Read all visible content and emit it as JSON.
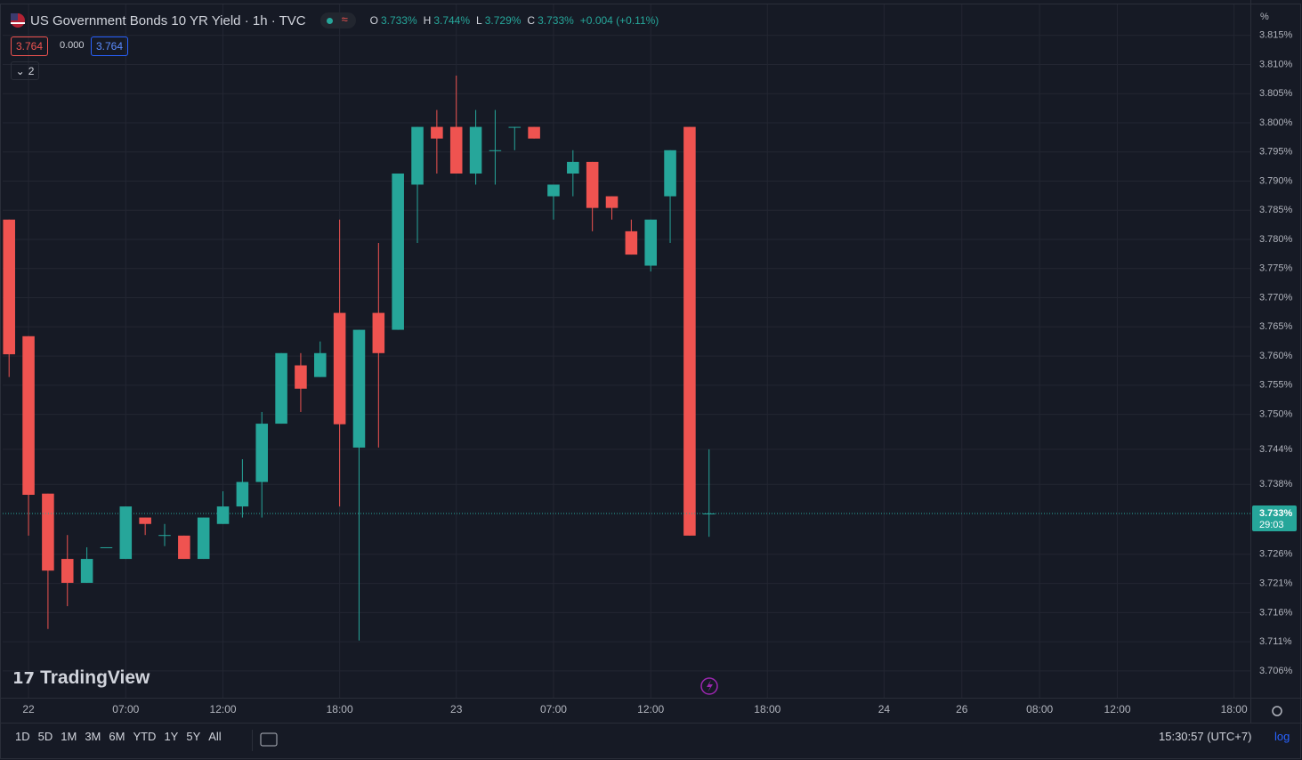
{
  "chart_data": {
    "type": "candlestick",
    "title": "US Government Bonds 10 YR Yield · 1h · TVC",
    "up_color": "#26a69a",
    "down_color": "#ef5350",
    "x": [
      0,
      1,
      2,
      3,
      4,
      5,
      6,
      7,
      8,
      9,
      10,
      11,
      12,
      13,
      14,
      15,
      16,
      17,
      18,
      19,
      20,
      21,
      22,
      23,
      24,
      25,
      26,
      27,
      28,
      29,
      30,
      31,
      32,
      33,
      34,
      35,
      36
    ],
    "open": [
      3.7834,
      3.7634,
      3.7364,
      3.7252,
      3.7211,
      3.7272,
      3.7252,
      3.7323,
      3.7293,
      3.7292,
      3.7252,
      3.7312,
      3.7342,
      3.7384,
      3.7484,
      3.7584,
      3.7564,
      3.7674,
      3.7443,
      3.7674,
      3.7645,
      3.7894,
      3.7993,
      3.7993,
      3.7913,
      3.7953,
      3.7993,
      3.7993,
      3.7874,
      3.7913,
      3.7933,
      3.7874,
      3.7814,
      3.7755,
      3.7874,
      3.7993,
      3.733
    ],
    "high": [
      3.7834,
      3.7634,
      3.7364,
      3.7293,
      3.7272,
      3.7272,
      3.7342,
      3.7323,
      3.7312,
      3.7292,
      3.7323,
      3.7368,
      3.7423,
      3.7504,
      3.7605,
      3.7605,
      3.7625,
      3.7834,
      3.7645,
      3.7794,
      3.7913,
      3.7993,
      3.8022,
      3.8081,
      3.8022,
      3.8022,
      3.7993,
      3.7993,
      3.7894,
      3.7953,
      3.7933,
      3.7874,
      3.7834,
      3.7834,
      3.7953,
      3.7993,
      3.744
    ],
    "low": [
      3.7564,
      3.7292,
      3.7132,
      3.7171,
      3.7211,
      3.7272,
      3.7252,
      3.7293,
      3.7274,
      3.7252,
      3.7252,
      3.7312,
      3.7323,
      3.7323,
      3.7484,
      3.7504,
      3.7564,
      3.7342,
      3.7112,
      3.7443,
      3.7645,
      3.7794,
      3.7913,
      3.7913,
      3.7894,
      3.7894,
      3.7953,
      3.7973,
      3.7834,
      3.7874,
      3.7814,
      3.7834,
      3.7774,
      3.7745,
      3.7794,
      3.7292,
      3.729
    ],
    "close": [
      3.7603,
      3.7362,
      3.7232,
      3.7211,
      3.7252,
      3.7272,
      3.7342,
      3.7312,
      3.7293,
      3.7252,
      3.7323,
      3.7342,
      3.7384,
      3.7484,
      3.7605,
      3.7544,
      3.7605,
      3.7483,
      3.7645,
      3.7605,
      3.7913,
      3.7993,
      3.7973,
      3.7913,
      3.7993,
      3.7953,
      3.7993,
      3.7973,
      3.7894,
      3.7933,
      3.7854,
      3.7854,
      3.7774,
      3.7834,
      3.7953,
      3.7292,
      3.733
    ],
    "xlim": [
      -0.33,
      63.84
    ],
    "xticks": [
      {
        "value": 1,
        "label": "22"
      },
      {
        "value": 6,
        "label": "07:00"
      },
      {
        "value": 11,
        "label": "12:00"
      },
      {
        "value": 17,
        "label": "18:00"
      },
      {
        "value": 23,
        "label": "23"
      },
      {
        "value": 28,
        "label": "07:00"
      },
      {
        "value": 33,
        "label": "12:00"
      },
      {
        "value": 39,
        "label": "18:00"
      },
      {
        "value": 45,
        "label": "24"
      },
      {
        "value": 49,
        "label": "26"
      },
      {
        "value": 53,
        "label": "08:00"
      },
      {
        "value": 57,
        "label": "12:00"
      },
      {
        "value": 63,
        "label": "18:00"
      }
    ],
    "ylim": [
      3.7014,
      3.8203
    ],
    "yticks": [
      {
        "value": 3.815,
        "label": "3.815%"
      },
      {
        "value": 3.81,
        "label": "3.810%"
      },
      {
        "value": 3.805,
        "label": "3.805%"
      },
      {
        "value": 3.8,
        "label": "3.800%"
      },
      {
        "value": 3.795,
        "label": "3.795%"
      },
      {
        "value": 3.79,
        "label": "3.790%"
      },
      {
        "value": 3.785,
        "label": "3.785%"
      },
      {
        "value": 3.78,
        "label": "3.780%"
      },
      {
        "value": 3.775,
        "label": "3.775%"
      },
      {
        "value": 3.77,
        "label": "3.770%"
      },
      {
        "value": 3.765,
        "label": "3.765%"
      },
      {
        "value": 3.76,
        "label": "3.760%"
      },
      {
        "value": 3.755,
        "label": "3.755%"
      },
      {
        "value": 3.75,
        "label": "3.750%"
      },
      {
        "value": 3.744,
        "label": "3.744%"
      },
      {
        "value": 3.738,
        "label": "3.738%"
      },
      {
        "value": 3.726,
        "label": "3.726%"
      },
      {
        "value": 3.721,
        "label": "3.721%"
      },
      {
        "value": 3.716,
        "label": "3.716%"
      },
      {
        "value": 3.711,
        "label": "3.711%"
      },
      {
        "value": 3.706,
        "label": "3.706%"
      }
    ],
    "y_unit": "%",
    "grid": true,
    "log_scale": true,
    "last_price": {
      "value": 3.733,
      "label": "3.733%"
    },
    "countdown": "29:03"
  },
  "legend": {
    "open_key": "O",
    "open": "3.733%",
    "high_key": "H",
    "high": "3.744%",
    "low_key": "L",
    "low": "3.729%",
    "close_key": "C",
    "close": "3.733%",
    "change": "+0.004 (+0.11%)"
  },
  "price_boxes": [
    "3.764",
    "0.000",
    "3.764"
  ],
  "indicators_count": "2",
  "logo": "TradingView",
  "ranges": [
    "1D",
    "5D",
    "1M",
    "3M",
    "6M",
    "YTD",
    "1Y",
    "5Y",
    "All"
  ],
  "clock": "15:30:57 (UTC+7)",
  "log_button": "log"
}
